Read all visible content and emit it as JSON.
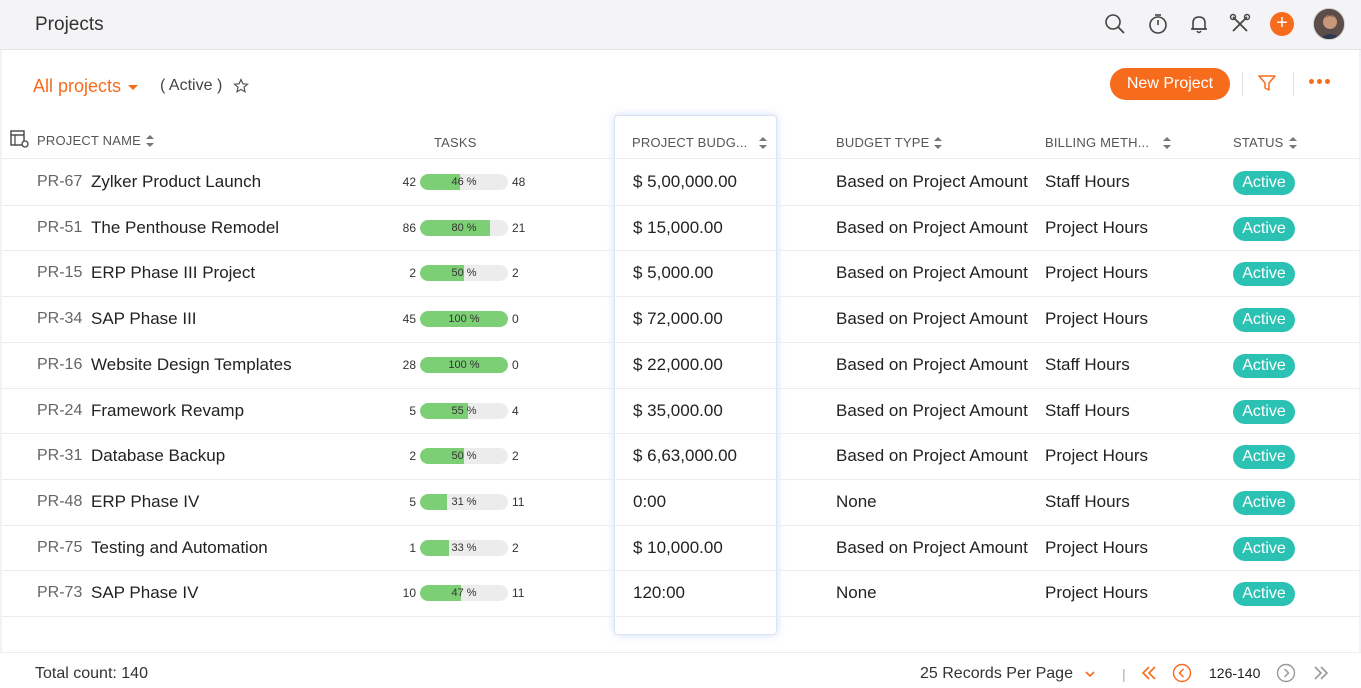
{
  "header": {
    "title": "Projects",
    "icons": [
      "search-icon",
      "timer-icon",
      "bell-icon",
      "tools-icon",
      "plus-icon",
      "avatar"
    ],
    "plus_label": "+"
  },
  "toolbar": {
    "view_label": "All projects",
    "filter_label": "( Active )",
    "new_button_label": "New Project",
    "accent": "#f76b1c"
  },
  "table": {
    "headers": {
      "name": "PROJECT NAME",
      "tasks": "TASKS",
      "budget": "PROJECT BUDG...",
      "budget_type": "BUDGET TYPE",
      "billing": "BILLING METH...",
      "status": "STATUS"
    },
    "rows": [
      {
        "id": "PR-67",
        "name": "Zylker Product Launch",
        "open": "42",
        "pct": 46,
        "pct_label": "46 %",
        "closed": "48",
        "budget": "$ 5,00,000.00",
        "budget_type": "Based on Project Amount",
        "billing": "Staff Hours",
        "status": "Active"
      },
      {
        "id": "PR-51",
        "name": "The Penthouse Remodel",
        "open": "86",
        "pct": 80,
        "pct_label": "80 %",
        "closed": "21",
        "budget": "$ 15,000.00",
        "budget_type": "Based on Project Amount",
        "billing": "Project Hours",
        "status": "Active"
      },
      {
        "id": "PR-15",
        "name": "ERP Phase III Project",
        "open": "2",
        "pct": 50,
        "pct_label": "50 %",
        "closed": "2",
        "budget": "$ 5,000.00",
        "budget_type": "Based on Project Amount",
        "billing": "Project Hours",
        "status": "Active"
      },
      {
        "id": "PR-34",
        "name": "SAP Phase III",
        "open": "45",
        "pct": 100,
        "pct_label": "100 %",
        "closed": "0",
        "budget": "$ 72,000.00",
        "budget_type": "Based on Project Amount",
        "billing": "Project Hours",
        "status": "Active"
      },
      {
        "id": "PR-16",
        "name": "Website Design Templates",
        "open": "28",
        "pct": 100,
        "pct_label": "100 %",
        "closed": "0",
        "budget": "$ 22,000.00",
        "budget_type": "Based on Project Amount",
        "billing": "Staff Hours",
        "status": "Active"
      },
      {
        "id": "PR-24",
        "name": "Framework Revamp",
        "open": "5",
        "pct": 55,
        "pct_label": "55 %",
        "closed": "4",
        "budget": "$ 35,000.00",
        "budget_type": "Based on Project Amount",
        "billing": "Staff Hours",
        "status": "Active"
      },
      {
        "id": "PR-31",
        "name": "Database Backup",
        "open": "2",
        "pct": 50,
        "pct_label": "50 %",
        "closed": "2",
        "budget": "$ 6,63,000.00",
        "budget_type": "Based on Project Amount",
        "billing": "Project Hours",
        "status": "Active"
      },
      {
        "id": "PR-48",
        "name": "ERP Phase IV",
        "open": "5",
        "pct": 31,
        "pct_label": "31 %",
        "closed": "11",
        "budget": "0:00",
        "budget_type": "None",
        "billing": "Staff Hours",
        "status": "Active"
      },
      {
        "id": "PR-75",
        "name": "Testing and Automation",
        "open": "1",
        "pct": 33,
        "pct_label": "33 %",
        "closed": "2",
        "budget": "$ 10,000.00",
        "budget_type": "Based on Project Amount",
        "billing": "Project Hours",
        "status": "Active"
      },
      {
        "id": "PR-73",
        "name": "SAP Phase IV",
        "open": "10",
        "pct": 47,
        "pct_label": "47 %",
        "closed": "11",
        "budget": "120:00",
        "budget_type": "None",
        "billing": "Project Hours",
        "status": "Active"
      }
    ],
    "status_color": "#2bc2b4",
    "progress_color": "#7ccf74"
  },
  "footer": {
    "total_label": "Total count: 140",
    "per_page_label": "25 Records Per Page",
    "separator": "|",
    "range": "126-140"
  }
}
